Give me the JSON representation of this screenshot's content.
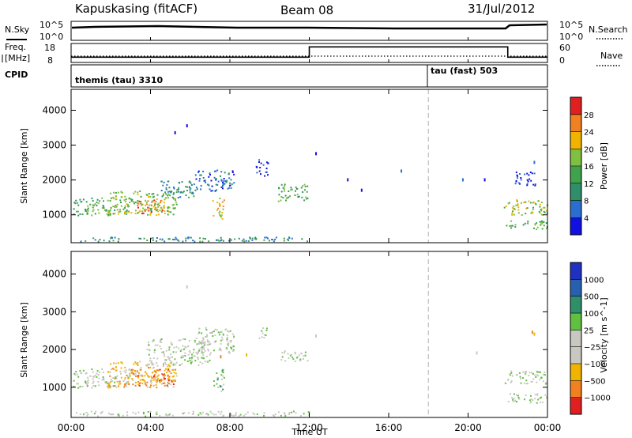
{
  "header": {
    "station": "Kapuskasing (fitACF)",
    "beam": "Beam 08",
    "date": "31/Jul/2012"
  },
  "strip_panels": {
    "noise": {
      "left_label": "N.Sky",
      "left_ticks": [
        "10^5",
        "10^0"
      ],
      "right_label": "N.Search",
      "right_ticks": [
        "10^5",
        "10^0"
      ]
    },
    "frequency": {
      "left_label_1": "Freq.",
      "left_label_2": "[MHz]",
      "left_ticks": [
        "18",
        "8"
      ],
      "right_label": "Nave",
      "right_ticks": [
        "60",
        "0"
      ],
      "steps": [
        {
          "start_hour": 0,
          "end_hour": 12,
          "freq_mhz": 10.8,
          "nave": 20
        },
        {
          "start_hour": 12,
          "end_hour": 22,
          "freq_mhz": 16.2,
          "nave": 20
        },
        {
          "start_hour": 22,
          "end_hour": 24,
          "freq_mhz": 10.8,
          "nave": 20
        }
      ]
    },
    "cpid": {
      "label": "CPID",
      "programs": [
        {
          "name": "themis (tau) 3310",
          "start_hour": 0
        },
        {
          "name": "tau (fast) 503",
          "start_hour": 18
        }
      ]
    }
  },
  "chart_data": [
    {
      "type": "heatmap",
      "name": "power",
      "ylabel": "Slant Range [km]",
      "ylim": [
        200,
        4600
      ],
      "yticks": [
        1000,
        2000,
        3000,
        4000
      ],
      "xlim": [
        0,
        24
      ],
      "colorbar": {
        "label": "Power [dB]",
        "ticks": [
          "4",
          "8",
          "12",
          "16",
          "20",
          "24",
          "28"
        ],
        "colors": [
          "#1010e0",
          "#2a6fd0",
          "#2f8f6a",
          "#3fa34d",
          "#7fc040",
          "#f0b400",
          "#f08020",
          "#e02020"
        ]
      },
      "regions": [
        {
          "x0": 0.1,
          "x1": 3.0,
          "y0": 1000,
          "y1": 1500,
          "level": 3
        },
        {
          "x0": 1.8,
          "x1": 5.3,
          "y0": 1000,
          "y1": 1700,
          "level": 4
        },
        {
          "x0": 3.3,
          "x1": 4.6,
          "y0": 1050,
          "y1": 1450,
          "level": 6
        },
        {
          "x0": 4.5,
          "x1": 6.2,
          "y0": 1500,
          "y1": 2000,
          "level": 2
        },
        {
          "x0": 6.2,
          "x1": 8.2,
          "y0": 1700,
          "y1": 2300,
          "level": 1
        },
        {
          "x0": 7.1,
          "x1": 7.7,
          "y0": 900,
          "y1": 1500,
          "level": 5
        },
        {
          "x0": 9.3,
          "x1": 9.9,
          "y0": 2100,
          "y1": 2600,
          "level": 0
        },
        {
          "x0": 10.4,
          "x1": 11.9,
          "y0": 1400,
          "y1": 1900,
          "level": 3
        },
        {
          "x0": 21.8,
          "x1": 24.0,
          "y0": 1000,
          "y1": 1450,
          "level": 4
        },
        {
          "x0": 21.9,
          "x1": 24.0,
          "y0": 600,
          "y1": 850,
          "level": 3
        },
        {
          "x0": 0.2,
          "x1": 12.0,
          "y0": 250,
          "y1": 380,
          "level": 2
        },
        {
          "x0": 22.3,
          "x1": 23.4,
          "y0": 1850,
          "y1": 2250,
          "level": 0
        }
      ],
      "scatter": [
        {
          "x": 5.8,
          "y": 3600,
          "level": 0
        },
        {
          "x": 5.2,
          "y": 3400,
          "level": 0
        },
        {
          "x": 12.3,
          "y": 2800,
          "level": 0
        },
        {
          "x": 13.9,
          "y": 2050,
          "level": 0
        },
        {
          "x": 14.6,
          "y": 1750,
          "level": 0
        },
        {
          "x": 16.6,
          "y": 2300,
          "level": 1
        },
        {
          "x": 19.7,
          "y": 2050,
          "level": 1
        },
        {
          "x": 20.8,
          "y": 2050,
          "level": 0
        },
        {
          "x": 23.3,
          "y": 2550,
          "level": 1
        }
      ]
    },
    {
      "type": "heatmap",
      "name": "velocity",
      "ylabel": "Slant Range [km]",
      "ylim": [
        200,
        4600
      ],
      "yticks": [
        1000,
        2000,
        3000,
        4000
      ],
      "xlim": [
        0,
        24
      ],
      "colorbar": {
        "label": "Velocity [m s^-1]",
        "ticks": [
          "1000",
          "500",
          "100",
          "25",
          "−25",
          "−100",
          "−500",
          "−1000"
        ],
        "colors": [
          "#2030c0",
          "#2860b0",
          "#2f8f6a",
          "#60c040",
          "#c8c8c0",
          "#c8c8c0",
          "#f0b400",
          "#f08020",
          "#e02020"
        ]
      },
      "regions": [
        {
          "x0": 0.1,
          "x1": 3.0,
          "y0": 1000,
          "y1": 1500,
          "level": 4
        },
        {
          "x0": 1.8,
          "x1": 5.3,
          "y0": 1000,
          "y1": 1700,
          "level": 6
        },
        {
          "x0": 3.0,
          "x1": 5.2,
          "y0": 1050,
          "y1": 1500,
          "level": 7
        },
        {
          "x0": 3.8,
          "x1": 7.0,
          "y0": 1600,
          "y1": 2300,
          "level": 4
        },
        {
          "x0": 6.2,
          "x1": 8.2,
          "y0": 1900,
          "y1": 2600,
          "level": 4
        },
        {
          "x0": 7.1,
          "x1": 7.7,
          "y0": 900,
          "y1": 1500,
          "level": 3
        },
        {
          "x0": 9.4,
          "x1": 9.9,
          "y0": 2300,
          "y1": 2600,
          "level": 4
        },
        {
          "x0": 10.5,
          "x1": 11.9,
          "y0": 1700,
          "y1": 2000,
          "level": 4
        },
        {
          "x0": 21.8,
          "x1": 24.0,
          "y0": 1100,
          "y1": 1450,
          "level": 4
        },
        {
          "x0": 21.9,
          "x1": 24.0,
          "y0": 600,
          "y1": 850,
          "level": 4
        },
        {
          "x0": 0.2,
          "x1": 12.0,
          "y0": 250,
          "y1": 380,
          "level": 4
        }
      ],
      "scatter": [
        {
          "x": 5.8,
          "y": 3700,
          "level": 4
        },
        {
          "x": 12.3,
          "y": 2400,
          "level": 4
        },
        {
          "x": 20.4,
          "y": 1950,
          "level": 4
        },
        {
          "x": 23.2,
          "y": 2500,
          "level": 7
        },
        {
          "x": 23.3,
          "y": 2450,
          "level": 6
        },
        {
          "x": 8.8,
          "y": 1900,
          "level": 6
        },
        {
          "x": 7.5,
          "y": 1850,
          "level": 7
        }
      ]
    }
  ],
  "x_axis": {
    "label": "Time UT",
    "ticks": [
      "00:00",
      "04:00",
      "08:00",
      "12:00",
      "16:00",
      "20:00",
      "00:00"
    ],
    "tick_hours": [
      0,
      4,
      8,
      12,
      16,
      20,
      24
    ],
    "program_change_hour": 18
  }
}
